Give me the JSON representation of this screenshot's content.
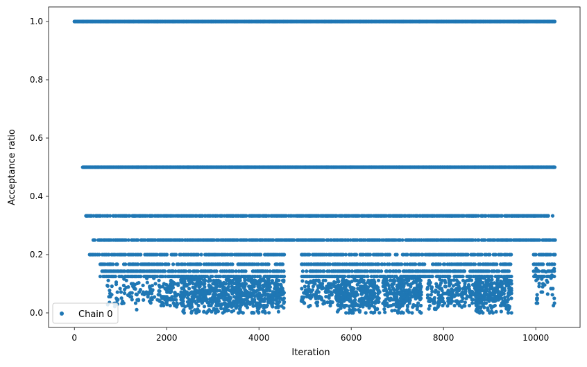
{
  "chart_data": {
    "type": "scatter",
    "title": "",
    "xlabel": "Iteration",
    "ylabel": "Acceptance ratio",
    "xlim": [
      -560,
      10960
    ],
    "ylim": [
      -0.05,
      1.05
    ],
    "xticks": [
      0,
      2000,
      4000,
      6000,
      8000,
      10000
    ],
    "xtick_labels": [
      "0",
      "2000",
      "4000",
      "6000",
      "8000",
      "10000"
    ],
    "yticks": [
      0.0,
      0.2,
      0.4,
      0.6,
      0.8,
      1.0
    ],
    "ytick_labels": [
      "0.0",
      "0.2",
      "0.4",
      "0.6",
      "0.8",
      "1.0"
    ],
    "grid": false,
    "legend": {
      "position": "lower-left"
    },
    "x_max": 10420,
    "series": [
      {
        "name": "Chain 0",
        "color": "#1f77b4",
        "marker": "circle",
        "bands": [
          {
            "y": 1.0,
            "x_start": 0,
            "x_end": 10420,
            "density": "dense"
          },
          {
            "y": 0.5,
            "x_start": 180,
            "x_end": 10420,
            "density": "dense"
          },
          {
            "y": 0.333,
            "x_start": 250,
            "x_end": 10420,
            "density": "medium"
          },
          {
            "y": 0.25,
            "x_start": 400,
            "x_end": 10420,
            "density": "medium"
          },
          {
            "y": 0.2,
            "x_start": 330,
            "x_end": 10420,
            "density": "sparse"
          },
          {
            "y": 0.167,
            "x_start": 560,
            "x_end": 10420,
            "density": "sparse"
          },
          {
            "y": 0.143,
            "x_start": 600,
            "x_end": 10420,
            "density": "sparse"
          },
          {
            "y": 0.125,
            "x_start": 560,
            "x_end": 10420,
            "density": "sparse"
          }
        ],
        "clusters": [
          {
            "x_start": 700,
            "x_end": 1900,
            "y_min": 0.01,
            "y_max": 0.12,
            "density": "low"
          },
          {
            "x_start": 1900,
            "x_end": 2250,
            "y_min": 0.02,
            "y_max": 0.11,
            "density": "medium"
          },
          {
            "x_start": 2300,
            "x_end": 3600,
            "y_min": 0.0,
            "y_max": 0.12,
            "density": "high"
          },
          {
            "x_start": 3500,
            "x_end": 4560,
            "y_min": 0.0,
            "y_max": 0.12,
            "density": "high"
          },
          {
            "x_start": 4900,
            "x_end": 5900,
            "y_min": 0.02,
            "y_max": 0.11,
            "density": "medium"
          },
          {
            "x_start": 5700,
            "x_end": 6620,
            "y_min": 0.0,
            "y_max": 0.12,
            "density": "high"
          },
          {
            "x_start": 6680,
            "x_end": 7520,
            "y_min": 0.0,
            "y_max": 0.12,
            "density": "high"
          },
          {
            "x_start": 7650,
            "x_end": 8800,
            "y_min": 0.01,
            "y_max": 0.12,
            "density": "medium"
          },
          {
            "x_start": 8700,
            "x_end": 9480,
            "y_min": 0.0,
            "y_max": 0.12,
            "density": "high"
          },
          {
            "x_start": 9980,
            "x_end": 10420,
            "y_min": 0.06,
            "y_max": 0.16,
            "density": "low"
          }
        ],
        "gaps": [
          {
            "y_max": 0.2,
            "x_start": 4560,
            "x_end": 4920
          },
          {
            "y_max": 0.2,
            "x_start": 9480,
            "x_end": 9950
          }
        ]
      }
    ]
  }
}
